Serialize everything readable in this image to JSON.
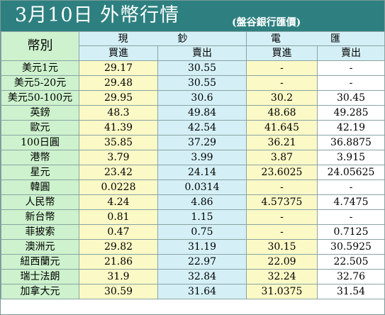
{
  "title": "3月10日 外幣行情",
  "subtitle": "(盤谷銀行匯價)",
  "headers": {
    "currency": "幣別",
    "cash": "現　鈔",
    "telegraphic": "電　匯",
    "buy": "買進",
    "sell": "賣出"
  },
  "rows": [
    {
      "currency": "美元1元",
      "cash_buy": "29.17",
      "cash_sell": "30.55",
      "tt_buy": "-",
      "tt_sell": "-"
    },
    {
      "currency": "美元5-20元",
      "cash_buy": "29.48",
      "cash_sell": "30.55",
      "tt_buy": "-",
      "tt_sell": "-"
    },
    {
      "currency": "美元50-100元",
      "cash_buy": "29.95",
      "cash_sell": "30.6",
      "tt_buy": "30.2",
      "tt_sell": "30.45"
    },
    {
      "currency": "英鎊",
      "cash_buy": "48.3",
      "cash_sell": "49.84",
      "tt_buy": "48.68",
      "tt_sell": "49.285"
    },
    {
      "currency": "歐元",
      "cash_buy": "41.39",
      "cash_sell": "42.54",
      "tt_buy": "41.645",
      "tt_sell": "42.19"
    },
    {
      "currency": "100日圓",
      "cash_buy": "35.85",
      "cash_sell": "37.29",
      "tt_buy": "36.21",
      "tt_sell": "36.8875"
    },
    {
      "currency": "港幣",
      "cash_buy": "3.79",
      "cash_sell": "3.99",
      "tt_buy": "3.87",
      "tt_sell": "3.915"
    },
    {
      "currency": "星元",
      "cash_buy": "23.42",
      "cash_sell": "24.14",
      "tt_buy": "23.6025",
      "tt_sell": "24.05625"
    },
    {
      "currency": "韓圓",
      "cash_buy": "0.0228",
      "cash_sell": "0.0314",
      "tt_buy": "-",
      "tt_sell": "-"
    },
    {
      "currency": "人民幣",
      "cash_buy": "4.24",
      "cash_sell": "4.86",
      "tt_buy": "4.57375",
      "tt_sell": "4.7475"
    },
    {
      "currency": "新台幣",
      "cash_buy": "0.81",
      "cash_sell": "1.15",
      "tt_buy": "-",
      "tt_sell": "-"
    },
    {
      "currency": "菲披索",
      "cash_buy": "0.47",
      "cash_sell": "0.75",
      "tt_buy": "-",
      "tt_sell": "0.7125"
    },
    {
      "currency": "澳洲元",
      "cash_buy": "29.82",
      "cash_sell": "31.19",
      "tt_buy": "30.15",
      "tt_sell": "30.5925"
    },
    {
      "currency": "紐西蘭元",
      "cash_buy": "21.86",
      "cash_sell": "22.97",
      "tt_buy": "22.09",
      "tt_sell": "22.505"
    },
    {
      "currency": "瑞士法朗",
      "cash_buy": "31.9",
      "cash_sell": "32.84",
      "tt_buy": "32.24",
      "tt_sell": "32.76"
    },
    {
      "currency": "加拿大元",
      "cash_buy": "30.59",
      "cash_sell": "31.64",
      "tt_buy": "31.0375",
      "tt_sell": "31.54"
    }
  ],
  "colors": {
    "title_bar": "#2e8080",
    "currency_column": "#cdf2cd",
    "buy_column": "#fbf9c6",
    "sell_column": "#d4f0f6",
    "header_band": "#d4f0f6",
    "grid_line": "#8aa4a4"
  }
}
